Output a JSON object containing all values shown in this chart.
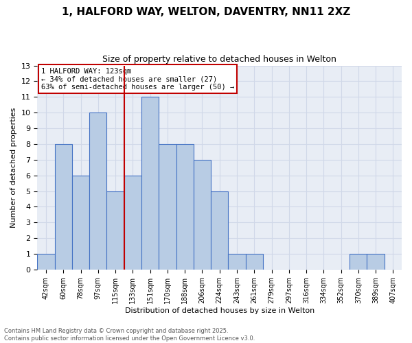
{
  "title_line1": "1, HALFORD WAY, WELTON, DAVENTRY, NN11 2XZ",
  "title_line2": "Size of property relative to detached houses in Welton",
  "xlabel": "Distribution of detached houses by size in Welton",
  "ylabel": "Number of detached properties",
  "bin_labels": [
    "42sqm",
    "60sqm",
    "78sqm",
    "97sqm",
    "115sqm",
    "133sqm",
    "151sqm",
    "170sqm",
    "188sqm",
    "206sqm",
    "224sqm",
    "243sqm",
    "261sqm",
    "279sqm",
    "297sqm",
    "316sqm",
    "334sqm",
    "352sqm",
    "370sqm",
    "389sqm",
    "407sqm"
  ],
  "bar_values": [
    1,
    8,
    6,
    10,
    5,
    6,
    11,
    8,
    8,
    7,
    5,
    1,
    1,
    0,
    0,
    0,
    0,
    0,
    1,
    1,
    0
  ],
  "bar_color": "#b8cce4",
  "bar_edgecolor": "#4472c4",
  "vline_x": 4.5,
  "vline_color": "#c00000",
  "annotation_text": "1 HALFORD WAY: 123sqm\n← 34% of detached houses are smaller (27)\n63% of semi-detached houses are larger (50) →",
  "annotation_boxcolor": "white",
  "annotation_edgecolor": "#c00000",
  "ylim": [
    0,
    13
  ],
  "yticks": [
    0,
    1,
    2,
    3,
    4,
    5,
    6,
    7,
    8,
    9,
    10,
    11,
    12,
    13
  ],
  "grid_color": "#d0d8e8",
  "bg_color": "#e8edf5",
  "footer_line1": "Contains HM Land Registry data © Crown copyright and database right 2025.",
  "footer_line2": "Contains public sector information licensed under the Open Government Licence v3.0."
}
